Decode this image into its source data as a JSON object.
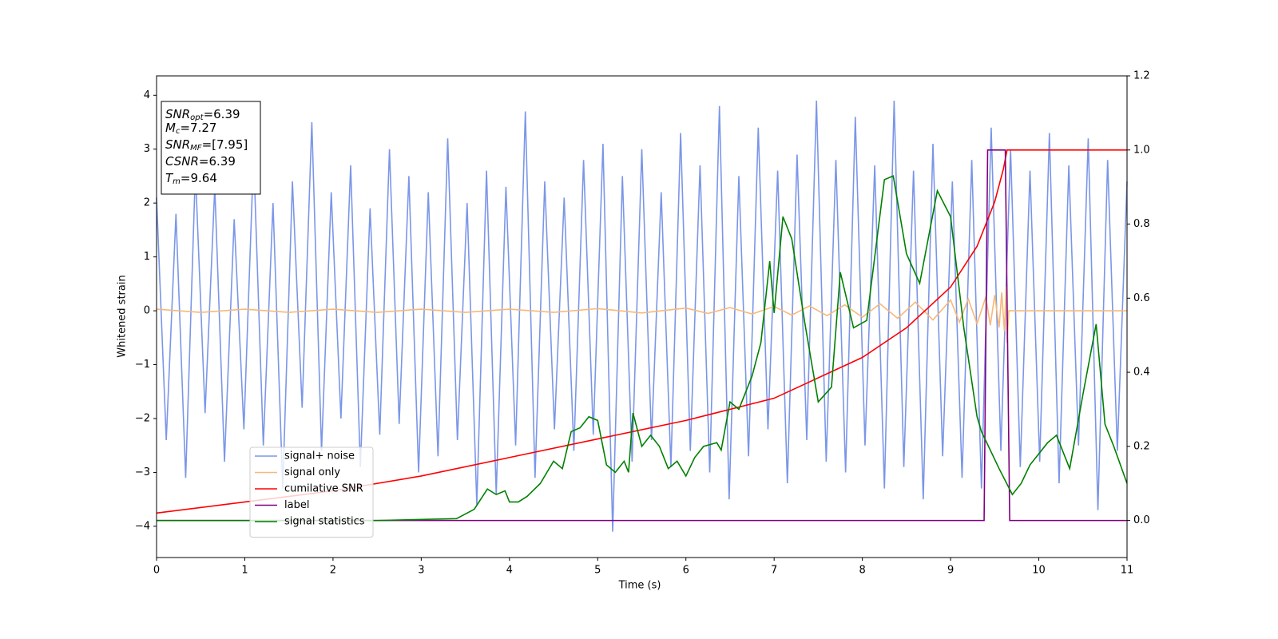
{
  "chart_data": {
    "type": "line",
    "xlabel": "Time (s)",
    "ylabel": "Whitened strain",
    "xlim": [
      0,
      11
    ],
    "xticks": [
      0,
      1,
      2,
      3,
      4,
      5,
      6,
      7,
      8,
      9,
      10,
      11
    ],
    "ylim": [
      -4.58,
      4.36
    ],
    "yticks": [
      {
        "value": -4,
        "label": "−4"
      },
      {
        "value": -3,
        "label": "−3"
      },
      {
        "value": -2,
        "label": "−2"
      },
      {
        "value": -1,
        "label": "−1"
      },
      0,
      1,
      2,
      3,
      4
    ],
    "y2lim": [
      -0.1,
      1.2
    ],
    "y2ticks": [
      {
        "value": 0,
        "label": "0.0"
      },
      {
        "value": 0.2,
        "label": "0.2"
      },
      {
        "value": 0.4,
        "label": "0.4"
      },
      {
        "value": 0.6,
        "label": "0.6"
      },
      {
        "value": 0.8,
        "label": "0.8"
      },
      {
        "value": 1,
        "label": "1.0"
      },
      {
        "value": 1.2,
        "label": "1.2"
      }
    ],
    "legend": "lower left",
    "annotation": [
      {
        "base": "SNR",
        "sub": "opt",
        "rest": "=6.39"
      },
      {
        "base": "M",
        "sub": "c",
        "rest": "=7.27"
      },
      {
        "base": "SNR",
        "sub": "MF",
        "rest": "=[7.95]"
      },
      {
        "base": "CSNR",
        "sub": "",
        "rest": "=6.39"
      },
      {
        "base": "T",
        "sub": "m",
        "rest": "=9.64"
      }
    ],
    "series": [
      {
        "name": "signal+ noise",
        "color": "#7b96e8",
        "axis": "y",
        "x": [
          0,
          0.11,
          0.22,
          0.33,
          0.44,
          0.55,
          0.66,
          0.77,
          0.88,
          0.99,
          1.1,
          1.21,
          1.32,
          1.43,
          1.54,
          1.65,
          1.76,
          1.87,
          1.98,
          2.09,
          2.2,
          2.31,
          2.42,
          2.53,
          2.64,
          2.75,
          2.86,
          2.97,
          3.08,
          3.19,
          3.3,
          3.41,
          3.52,
          3.63,
          3.74,
          3.85,
          3.96,
          4.07,
          4.18,
          4.29,
          4.4,
          4.51,
          4.62,
          4.73,
          4.84,
          4.95,
          5.06,
          5.17,
          5.28,
          5.39,
          5.5,
          5.61,
          5.72,
          5.83,
          5.94,
          6.05,
          6.16,
          6.27,
          6.38,
          6.49,
          6.6,
          6.71,
          6.82,
          6.93,
          7.04,
          7.15,
          7.26,
          7.37,
          7.48,
          7.59,
          7.7,
          7.81,
          7.92,
          8.03,
          8.14,
          8.25,
          8.36,
          8.47,
          8.58,
          8.69,
          8.8,
          8.91,
          9.02,
          9.13,
          9.24,
          9.35,
          9.46,
          9.57,
          9.68,
          9.79,
          9.9,
          10.01,
          10.12,
          10.23,
          10.34,
          10.45,
          10.56,
          10.67,
          10.78,
          10.89,
          11
        ],
        "values": [
          2.1,
          -2.4,
          1.8,
          -3.1,
          2.6,
          -1.9,
          2.3,
          -2.8,
          1.7,
          -2.2,
          2.9,
          -2.5,
          2.0,
          -3.3,
          2.4,
          -1.8,
          3.5,
          -2.6,
          2.2,
          -2.0,
          2.7,
          -2.9,
          1.9,
          -2.3,
          3.0,
          -2.1,
          2.5,
          -3.0,
          2.2,
          -2.7,
          3.2,
          -2.4,
          2.0,
          -3.6,
          2.6,
          -3.4,
          2.3,
          -2.5,
          3.7,
          -3.1,
          2.4,
          -2.2,
          2.1,
          -2.6,
          2.8,
          -2.3,
          3.1,
          -4.1,
          2.5,
          -2.8,
          3.0,
          -2.4,
          2.2,
          -2.9,
          3.3,
          -2.6,
          2.7,
          -3.0,
          3.8,
          -3.5,
          2.5,
          -2.7,
          3.4,
          -2.2,
          2.6,
          -3.2,
          2.9,
          -2.4,
          3.9,
          -2.8,
          2.8,
          -3.0,
          3.6,
          -2.5,
          2.7,
          -3.3,
          3.9,
          -2.9,
          2.6,
          -3.5,
          3.1,
          -2.7,
          2.4,
          -3.1,
          2.8,
          -3.3,
          3.4,
          -2.6,
          3.0,
          -2.9,
          2.6,
          -2.8,
          3.3,
          -3.2,
          2.7,
          -2.5,
          3.2,
          -3.7,
          2.8,
          -2.6,
          2.4
        ]
      },
      {
        "name": "signal only",
        "color": "#f5b97a",
        "axis": "y",
        "x": [
          0,
          0.5,
          1,
          1.5,
          2,
          2.5,
          3,
          3.5,
          4,
          4.5,
          5,
          5.5,
          6,
          6.25,
          6.5,
          6.75,
          7,
          7.2,
          7.4,
          7.6,
          7.8,
          8,
          8.2,
          8.4,
          8.6,
          8.8,
          9,
          9.1,
          9.2,
          9.3,
          9.4,
          9.45,
          9.5,
          9.55,
          9.58,
          9.61,
          9.63,
          9.64,
          9.66,
          11
        ],
        "values": [
          0.03,
          -0.03,
          0.03,
          -0.03,
          0.03,
          -0.03,
          0.03,
          -0.03,
          0.03,
          -0.03,
          0.04,
          -0.04,
          0.05,
          -0.05,
          0.06,
          -0.06,
          0.08,
          -0.08,
          0.09,
          -0.09,
          0.11,
          -0.12,
          0.13,
          -0.14,
          0.16,
          -0.17,
          0.2,
          -0.21,
          0.22,
          -0.24,
          0.26,
          -0.27,
          0.29,
          -0.31,
          0.34,
          -0.38,
          0.45,
          -0.6,
          0,
          0
        ]
      },
      {
        "name": "cumilative SNR",
        "color": "#ff0000",
        "axis": "y2",
        "x": [
          0,
          1,
          2,
          3,
          4,
          5,
          6,
          7,
          8,
          8.5,
          9,
          9.3,
          9.5,
          9.6,
          9.64,
          11
        ],
        "values": [
          0.02,
          0.05,
          0.08,
          0.12,
          0.17,
          0.22,
          0.27,
          0.33,
          0.44,
          0.52,
          0.63,
          0.74,
          0.86,
          0.95,
          1.0,
          1.0
        ]
      },
      {
        "name": "label",
        "color": "#800080",
        "axis": "y2",
        "x": [
          0,
          9.38,
          9.42,
          9.62,
          9.67,
          11
        ],
        "values": [
          0,
          0,
          1,
          1,
          0,
          0
        ]
      },
      {
        "name": "signal statistics",
        "color": "#008000",
        "axis": "y2",
        "x": [
          0,
          2.5,
          3.4,
          3.6,
          3.75,
          3.85,
          3.95,
          4.0,
          4.1,
          4.2,
          4.35,
          4.5,
          4.6,
          4.7,
          4.8,
          4.9,
          5.0,
          5.1,
          5.2,
          5.3,
          5.35,
          5.4,
          5.5,
          5.6,
          5.7,
          5.8,
          5.9,
          6.0,
          6.1,
          6.2,
          6.35,
          6.4,
          6.5,
          6.6,
          6.75,
          6.85,
          6.95,
          7.0,
          7.1,
          7.2,
          7.35,
          7.5,
          7.65,
          7.75,
          7.9,
          8.05,
          8.25,
          8.35,
          8.5,
          8.65,
          8.85,
          9.0,
          9.15,
          9.3,
          9.35,
          9.55,
          9.7,
          9.8,
          9.9,
          10.1,
          10.2,
          10.35,
          10.5,
          10.65,
          10.75,
          10.85,
          11
        ],
        "values": [
          0,
          0,
          0.005,
          0.03,
          0.085,
          0.07,
          0.08,
          0.05,
          0.05,
          0.065,
          0.1,
          0.16,
          0.14,
          0.24,
          0.25,
          0.28,
          0.27,
          0.15,
          0.13,
          0.16,
          0.13,
          0.29,
          0.2,
          0.23,
          0.2,
          0.14,
          0.16,
          0.12,
          0.17,
          0.2,
          0.21,
          0.19,
          0.32,
          0.3,
          0.39,
          0.48,
          0.7,
          0.56,
          0.82,
          0.76,
          0.53,
          0.32,
          0.36,
          0.67,
          0.52,
          0.54,
          0.92,
          0.93,
          0.72,
          0.64,
          0.89,
          0.82,
          0.52,
          0.28,
          0.24,
          0.14,
          0.07,
          0.1,
          0.15,
          0.21,
          0.23,
          0.14,
          0.34,
          0.53,
          0.26,
          0.2,
          0.1
        ]
      }
    ]
  }
}
